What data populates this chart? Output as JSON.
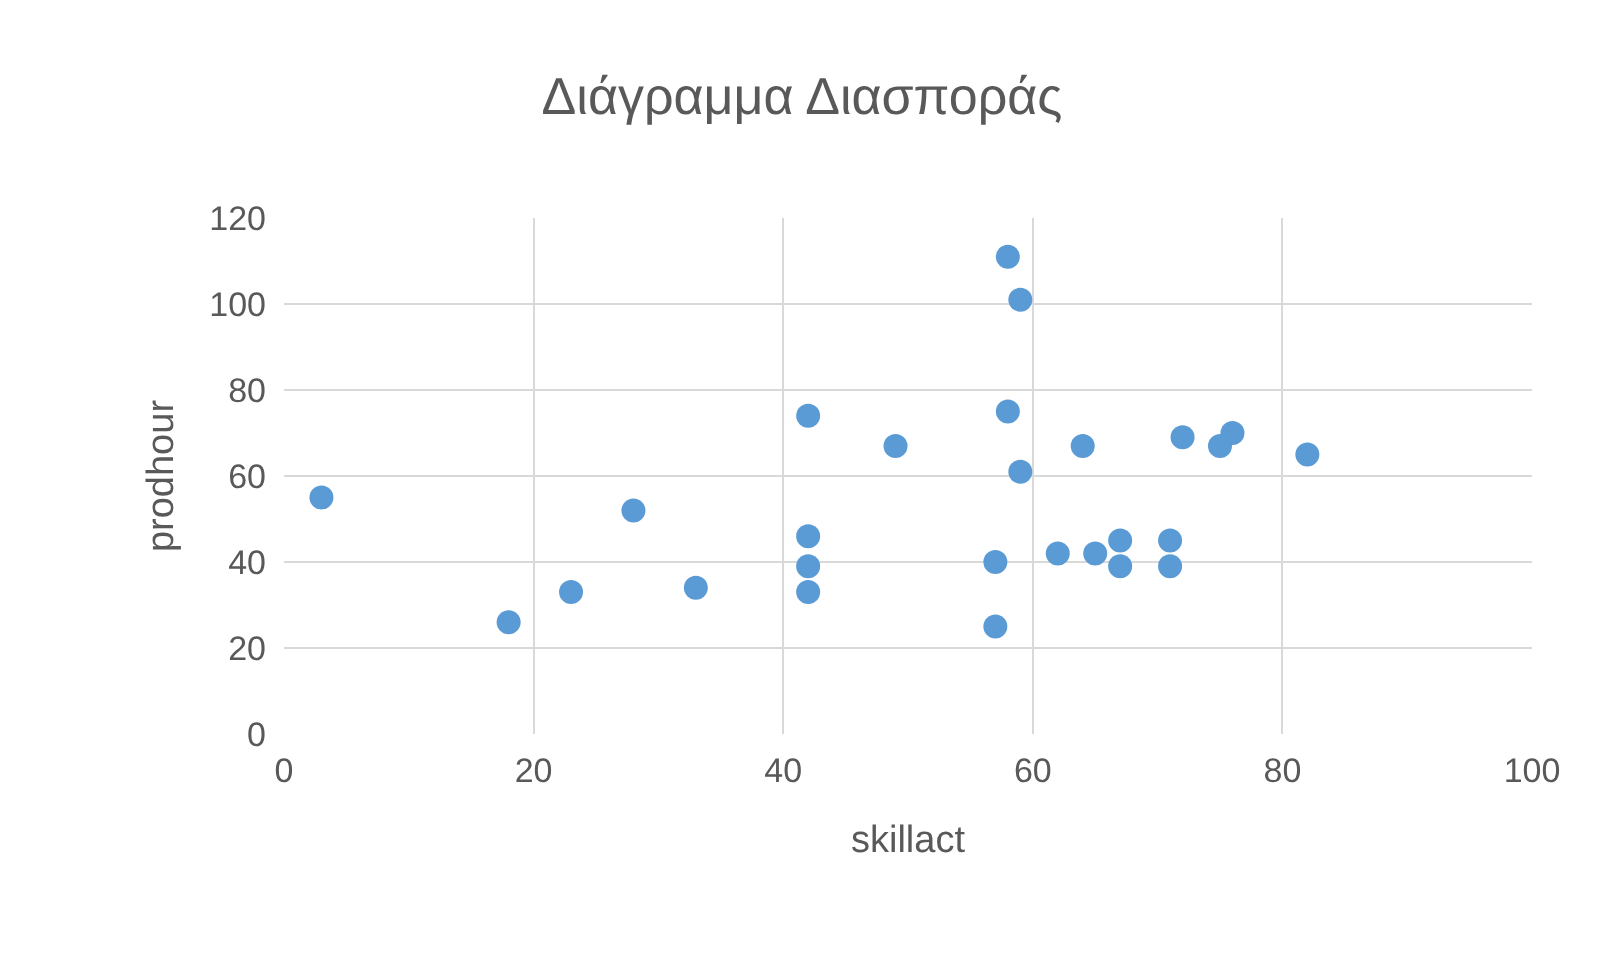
{
  "chart_data": {
    "type": "scatter",
    "title": "Διάγραμμα Διασποράς",
    "xlabel": "skillact",
    "ylabel": "prodhour",
    "x": [
      3,
      18,
      23,
      28,
      33,
      42,
      42,
      42,
      42,
      49,
      58,
      59,
      58,
      59,
      57,
      57,
      62,
      64,
      65,
      67,
      67,
      71,
      71,
      72,
      75,
      76,
      82
    ],
    "series": [
      {
        "color": "#5b9bd5",
        "values": [
          55,
          26,
          33,
          52,
          34,
          74,
          46,
          39,
          33,
          67,
          111,
          101,
          75,
          61,
          40,
          25,
          42,
          67,
          42,
          45,
          39,
          45,
          39,
          69,
          67,
          70,
          65
        ]
      }
    ],
    "xlim": [
      0,
      100
    ],
    "xticks": [
      0,
      20,
      40,
      60,
      80,
      100
    ],
    "ylim": [
      0,
      120
    ],
    "yticks": [
      0,
      20,
      40,
      60,
      80,
      100,
      120
    ],
    "grid": true,
    "marker": "circle"
  }
}
